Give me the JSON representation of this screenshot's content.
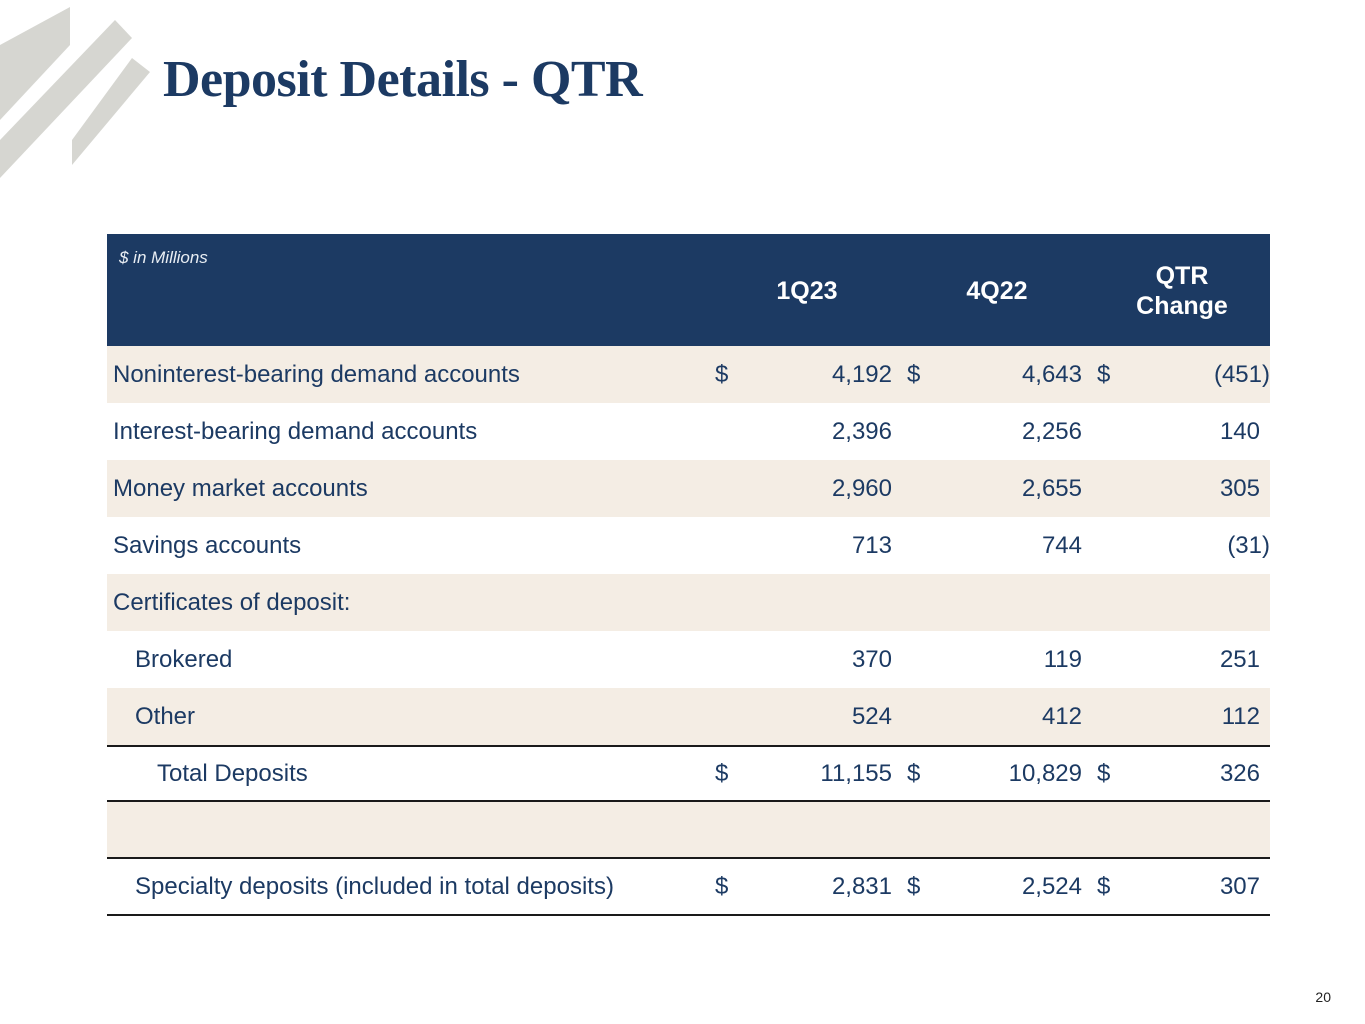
{
  "title": "Deposit Details - QTR",
  "colors": {
    "navy": "#1c3a63",
    "shade": "#f4ede4",
    "logo_gray": "#d6d6d1"
  },
  "table": {
    "units": "$ in Millions",
    "headers": [
      "1Q23",
      "4Q22",
      "QTR Change"
    ],
    "rows": [
      {
        "label": "Noninterest-bearing demand accounts",
        "d1": "$",
        "v1": "4,192",
        "d2": "$",
        "v2": "4,643",
        "d3": "$",
        "v3": "(451)"
      },
      {
        "label": "Interest-bearing demand accounts",
        "v1": "2,396",
        "v2": "2,256",
        "v3": "140"
      },
      {
        "label": "Money market accounts",
        "v1": "2,960",
        "v2": "2,655",
        "v3": "305"
      },
      {
        "label": "Savings accounts",
        "v1": "713",
        "v2": "744",
        "v3": "(31)"
      },
      {
        "label": "Certificates of deposit:"
      },
      {
        "label": "Brokered",
        "v1": "370",
        "v2": "119",
        "v3": "251"
      },
      {
        "label": "Other",
        "v1": "524",
        "v2": "412",
        "v3": "112"
      },
      {
        "label": "Total Deposits",
        "d1": "$",
        "v1": "11,155",
        "d2": "$",
        "v2": "10,829",
        "d3": "$",
        "v3": "326"
      },
      {
        "label": ""
      },
      {
        "label": "Specialty deposits (included in total deposits)",
        "d1": "$",
        "v1": "2,831",
        "d2": "$",
        "v2": "2,524",
        "d3": "$",
        "v3": "307"
      }
    ]
  },
  "page_number": "20"
}
